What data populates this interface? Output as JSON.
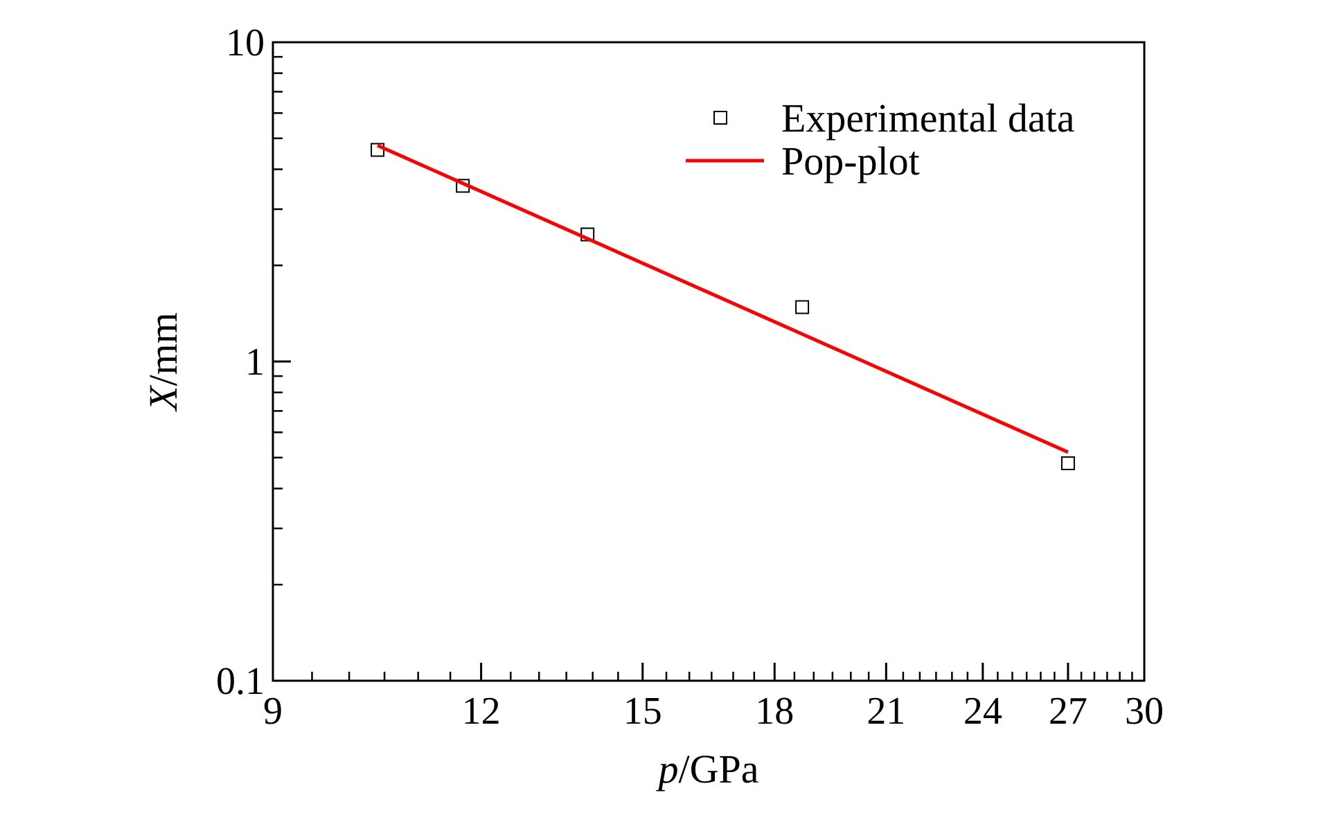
{
  "chart_data": {
    "type": "scatter",
    "title": "",
    "xlabel": {
      "symbol": "p",
      "unit": "/GPa"
    },
    "ylabel": {
      "symbol": "X",
      "unit": "/mm"
    },
    "xscale": "log",
    "yscale": "log",
    "xlim": [
      9,
      30
    ],
    "ylim": [
      0.1,
      10
    ],
    "xticks": [
      9,
      12,
      15,
      18,
      21,
      24,
      27,
      30
    ],
    "xtick_labels": [
      "9",
      "12",
      "15",
      "18",
      "21",
      "24",
      "27",
      "30"
    ],
    "yticks": [
      0.1,
      1,
      10
    ],
    "ytick_labels": [
      "0.1",
      "1",
      "10"
    ],
    "grid": false,
    "legend_position": "top-right",
    "series": [
      {
        "name": "Experimental data",
        "kind": "scatter",
        "marker": "open-square",
        "color": "#000000",
        "x": [
          10.4,
          11.7,
          13.9,
          18.7,
          27.0
        ],
        "y": [
          4.6,
          3.55,
          2.5,
          1.48,
          0.48
        ]
      },
      {
        "name": "Pop-plot",
        "kind": "line",
        "color": "#ff0000",
        "x": [
          10.4,
          27.0
        ],
        "y": [
          4.75,
          0.52
        ]
      }
    ]
  }
}
